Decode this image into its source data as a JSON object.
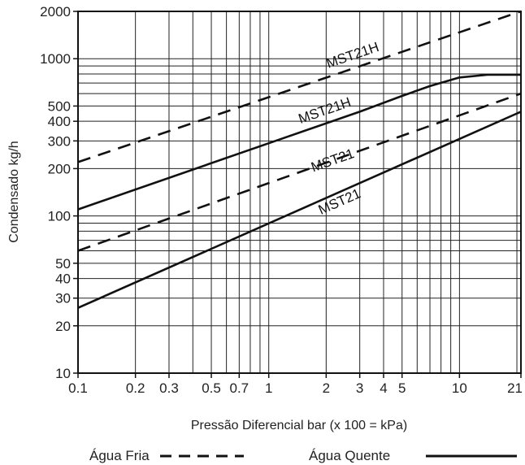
{
  "chart_data": {
    "type": "line",
    "x_scale": "log",
    "y_scale": "log",
    "xlabel": "Pressão Diferencial bar (x 100 = kPa)",
    "ylabel": "Condensado kg/h",
    "xlim": [
      0.1,
      21
    ],
    "ylim": [
      10,
      2000
    ],
    "grid": true,
    "legend_position": "bottom",
    "x_ticks": [
      0.1,
      0.2,
      0.3,
      0.5,
      0.7,
      1,
      2,
      3,
      4,
      5,
      10,
      21
    ],
    "x_tick_labels": [
      "0.1",
      "0.2",
      "0.3",
      "0.5",
      "0.7",
      "1",
      "2",
      "3",
      "4",
      "5",
      "10",
      "21"
    ],
    "y_ticks": [
      10,
      20,
      30,
      40,
      50,
      100,
      200,
      300,
      400,
      500,
      1000,
      2000
    ],
    "y_tick_labels": [
      "10",
      "20",
      "30",
      "40",
      "50",
      "100",
      "200",
      "300",
      "400",
      "500",
      "1000",
      "2000"
    ],
    "legend": [
      {
        "label": "Água Fria",
        "style": "dashed"
      },
      {
        "label": "Água Quente",
        "style": "solid"
      }
    ],
    "series": [
      {
        "name": "MST21H",
        "style": "dashed",
        "x": [
          0.1,
          21
        ],
        "y": [
          220,
          2000
        ]
      },
      {
        "name": "MST21H",
        "style": "solid",
        "x": [
          0.1,
          1,
          3,
          5,
          7,
          10,
          14,
          21
        ],
        "y": [
          110,
          290,
          460,
          580,
          670,
          760,
          790,
          790
        ]
      },
      {
        "name": "MST21",
        "style": "dashed",
        "x": [
          0.1,
          21
        ],
        "y": [
          60,
          600
        ]
      },
      {
        "name": "MST21",
        "style": "solid",
        "x": [
          0.1,
          21
        ],
        "y": [
          26,
          460
        ]
      }
    ],
    "series_label_pos": [
      {
        "x": 2.8,
        "y": 990
      },
      {
        "x": 2.0,
        "y": 440
      },
      {
        "x": 2.2,
        "y": 212
      },
      {
        "x": 2.4,
        "y": 116
      }
    ]
  }
}
